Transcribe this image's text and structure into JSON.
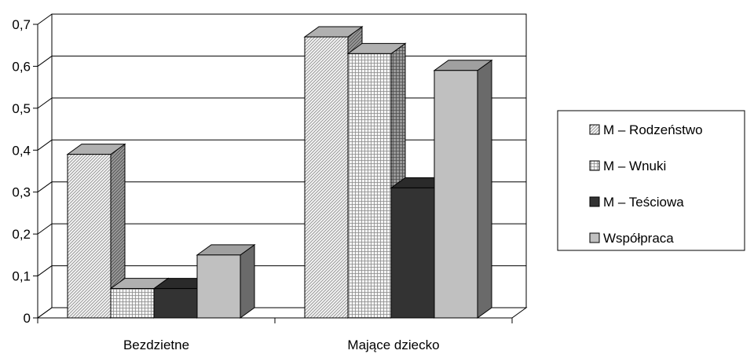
{
  "chart_data": {
    "type": "bar",
    "style": "3d-clustered",
    "categories": [
      "Bezdzietne",
      "Mające dziecko"
    ],
    "series": [
      {
        "name": "M – Rodzeństwo",
        "values": [
          0.39,
          0.67
        ],
        "fill": "diagonal-hatch",
        "color": "#d8d8d8"
      },
      {
        "name": "M – Wnuki",
        "values": [
          0.07,
          0.63
        ],
        "fill": "grid-hatch",
        "color": "#e6e6e6"
      },
      {
        "name": "M – Teściowa",
        "values": [
          0.07,
          0.31
        ],
        "fill": "solid",
        "color": "#333333"
      },
      {
        "name": "Współpraca",
        "values": [
          0.15,
          0.59
        ],
        "fill": "solid",
        "color": "#c0c0c0"
      }
    ],
    "y_ticks": [
      "0",
      "0,1",
      "0,2",
      "0,3",
      "0,4",
      "0,5",
      "0,6",
      "0,7"
    ],
    "ylim": [
      0,
      0.7
    ],
    "grid": true,
    "legend_position": "right"
  }
}
